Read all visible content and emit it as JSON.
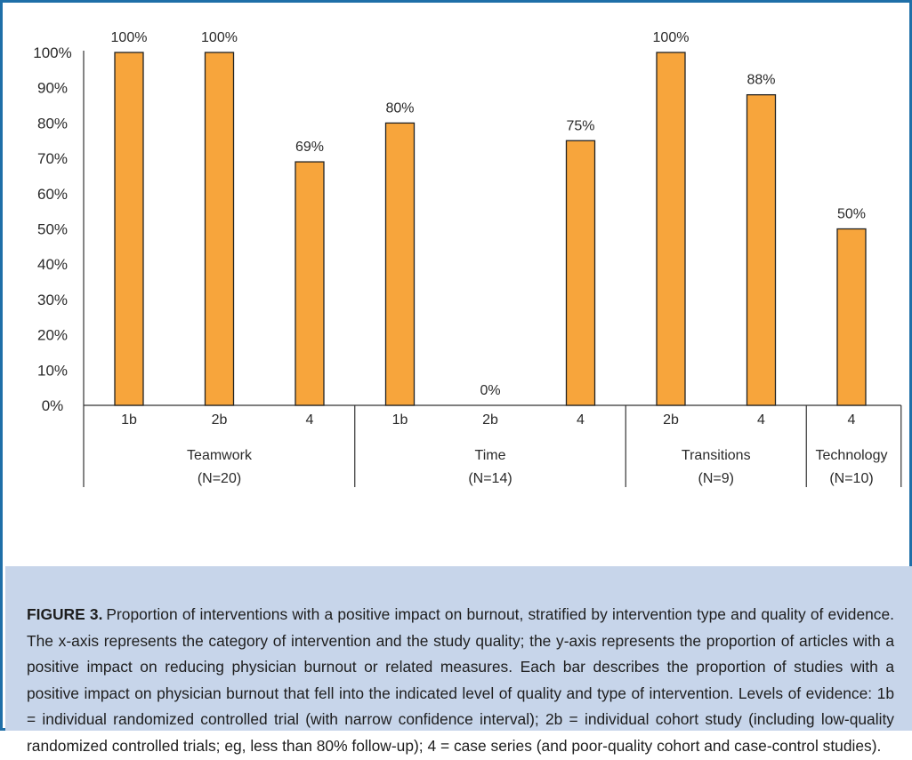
{
  "chart_data": {
    "type": "bar",
    "ylim": [
      0,
      100
    ],
    "ytick_labels": [
      "0%",
      "10%",
      "20%",
      "30%",
      "40%",
      "50%",
      "60%",
      "70%",
      "80%",
      "90%",
      "100%"
    ],
    "bar_color": "#f7a53c",
    "grid": false,
    "groups": [
      {
        "name": "Teamwork",
        "count": "(N=20)",
        "bars": [
          {
            "level": "1b",
            "value": 100,
            "label": "100%"
          },
          {
            "level": "2b",
            "value": 100,
            "label": "100%"
          },
          {
            "level": "4",
            "value": 69,
            "label": "69%"
          }
        ]
      },
      {
        "name": "Time",
        "count": "(N=14)",
        "bars": [
          {
            "level": "1b",
            "value": 80,
            "label": "80%"
          },
          {
            "level": "2b",
            "value": 0,
            "label": "0%"
          },
          {
            "level": "4",
            "value": 75,
            "label": "75%"
          }
        ]
      },
      {
        "name": "Transitions",
        "count": "(N=9)",
        "bars": [
          {
            "level": "2b",
            "value": 100,
            "label": "100%"
          },
          {
            "level": "4",
            "value": 88,
            "label": "88%"
          }
        ]
      },
      {
        "name": "Technology",
        "count": "(N=10)",
        "bars": [
          {
            "level": "4",
            "value": 50,
            "label": "50%"
          }
        ]
      }
    ]
  },
  "caption": {
    "lead": "FIGURE 3.",
    "text": "Proportion of interventions with a positive impact on burnout, stratified by intervention type and quality of evidence. The x-axis represents the category of intervention and the study quality; the y-axis represents the proportion of articles with a positive impact on reducing physician burnout or related measures. Each bar describes the proportion of studies with a positive impact on physician burnout that fell into the indicated level of quality and type of intervention. Levels of evidence: 1b = individual randomized controlled trial (with narrow confidence interval); 2b = individual cohort study (including low-quality randomized controlled trials; eg, less than 80% follow-up); 4 = case series (and poor-quality cohort and case-control studies)."
  }
}
